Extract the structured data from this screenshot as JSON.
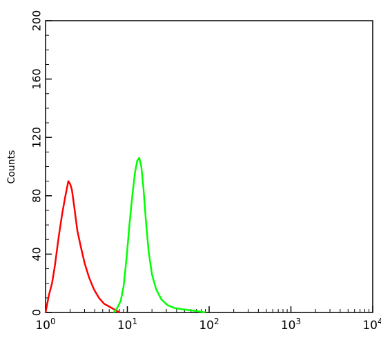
{
  "chart_data": {
    "type": "line",
    "xlabel": "",
    "ylabel": "Counts",
    "x_scale": "log",
    "xlim": [
      1,
      10000
    ],
    "ylim": [
      0,
      200
    ],
    "grid": false,
    "y_ticks": [
      "0",
      "40",
      "80",
      "120",
      "160",
      "200"
    ],
    "x_ticks": [
      {
        "base": "10",
        "exp": "0"
      },
      {
        "base": "10",
        "exp": "1"
      },
      {
        "base": "10",
        "exp": "2"
      },
      {
        "base": "10",
        "exp": "3"
      },
      {
        "base": "10",
        "exp": "4"
      }
    ],
    "series": [
      {
        "color": "#ff0000",
        "x": [
          1.0,
          1.1,
          1.2,
          1.3,
          1.45,
          1.6,
          1.75,
          1.9,
          2.0,
          2.1,
          2.25,
          2.45,
          2.7,
          3.0,
          3.4,
          3.9,
          4.5,
          5.2,
          6.0,
          7.0,
          8.0
        ],
        "y": [
          0,
          12,
          20,
          32,
          52,
          68,
          80,
          90,
          88,
          84,
          72,
          56,
          45,
          34,
          24,
          16,
          10,
          6,
          4,
          2,
          0
        ]
      },
      {
        "color": "#00ff00",
        "x": [
          6.8,
          7.5,
          8.3,
          9.0,
          9.8,
          10.6,
          11.5,
          12.4,
          13.2,
          14.0,
          14.8,
          15.7,
          16.8,
          18.2,
          20.0,
          22.5,
          26.0,
          31.0,
          38.0,
          50.0,
          70.0,
          90.0
        ],
        "y": [
          0,
          3,
          8,
          18,
          38,
          60,
          80,
          96,
          104,
          106,
          100,
          86,
          64,
          42,
          26,
          16,
          9,
          5,
          3,
          2,
          1,
          0
        ]
      }
    ]
  }
}
